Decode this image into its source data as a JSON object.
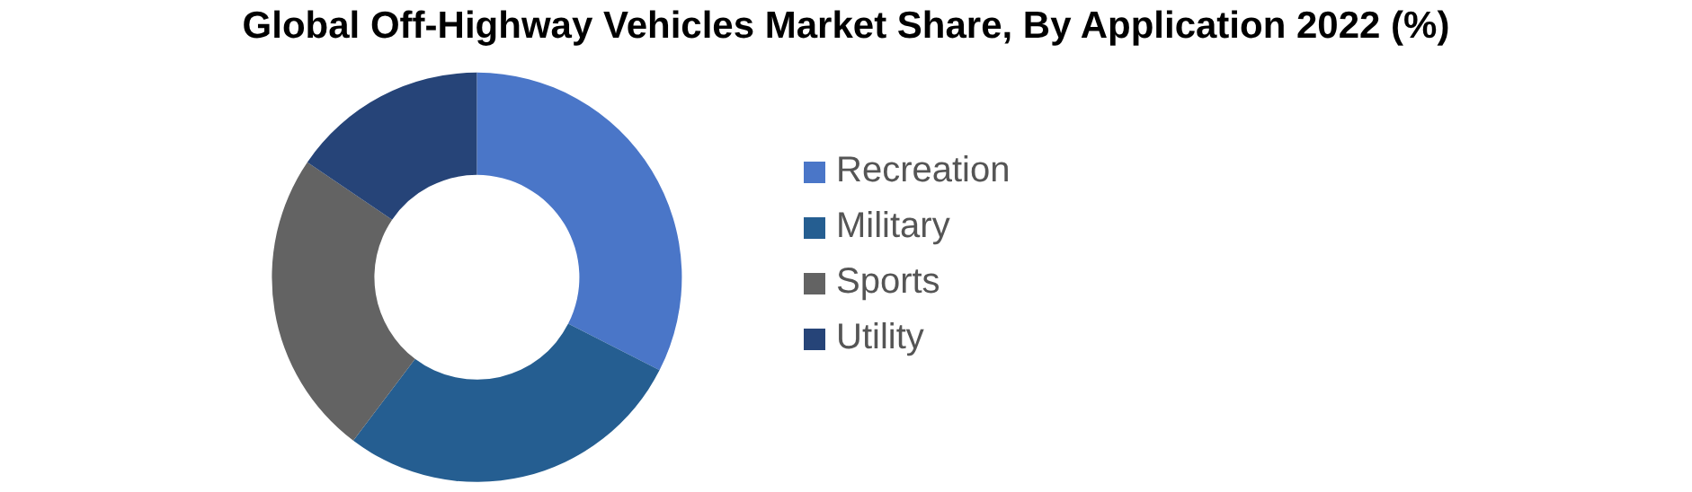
{
  "chart_data": {
    "type": "donut",
    "title": "Global Off-Highway Vehicles Market Share, By Application 2022 (%)",
    "categories": [
      "Recreation",
      "Military",
      "Sports",
      "Utility"
    ],
    "values": [
      32.5,
      27.8,
      24.2,
      15.5
    ],
    "colors": [
      "#4a76c8",
      "#255e91",
      "#636363",
      "#264478"
    ],
    "legend": "right"
  }
}
